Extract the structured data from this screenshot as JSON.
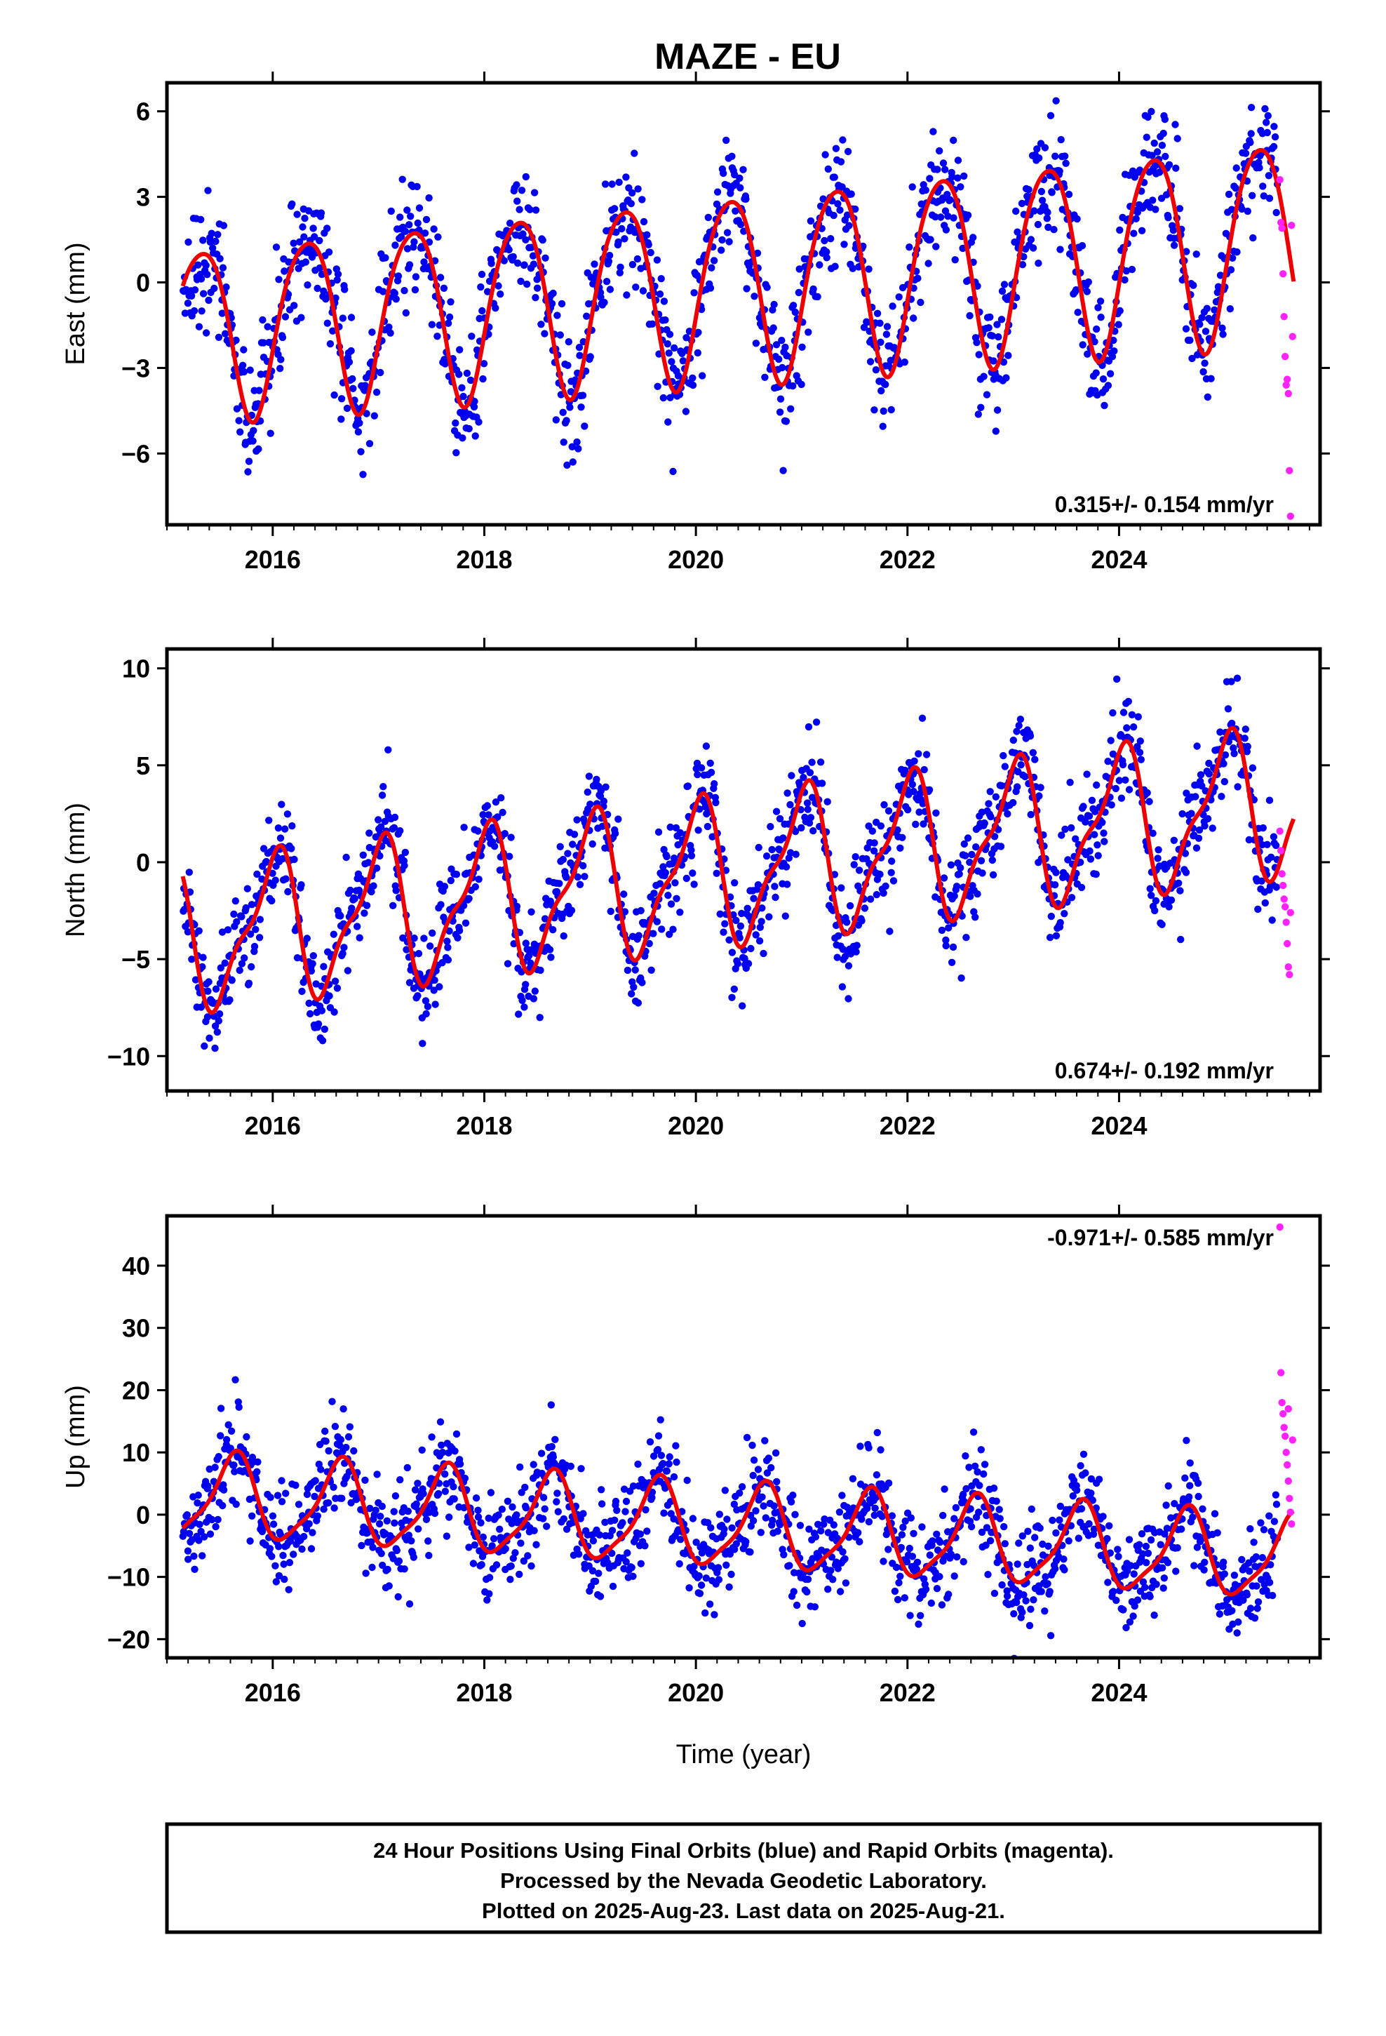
{
  "title": "MAZE - EU",
  "colors": {
    "final_points": "#0000ee",
    "rapid_points": "#ff22ff",
    "model_line": "#ee0000",
    "frame": "#000000"
  },
  "chart_data": [
    {
      "type": "scatter",
      "panel": "east",
      "ylabel": "East (mm)",
      "xlabel": "",
      "xlim": [
        2015.0,
        2025.9
      ],
      "ylim": [
        -8.5,
        7.0
      ],
      "yticks": [
        6,
        3,
        0,
        -3,
        -6
      ],
      "ytick_labels": [
        "6",
        "3",
        "0",
        "−3",
        "−6"
      ],
      "xticks": [
        2016,
        2018,
        2020,
        2022,
        2024
      ],
      "xtick_labels": [
        "2016",
        "2018",
        "2020",
        "2022",
        "2024"
      ],
      "rate_label": "0.315+/- 0.154 mm/yr",
      "rate_position": "bottom-right",
      "model": {
        "start": 2015.15,
        "end": 2025.65,
        "trend": 0.315,
        "offset": -1.7,
        "amplitude": 3.0,
        "amp_growth": 0.05,
        "phase_peak": 0.32,
        "semi_amplitude": 0.4,
        "semi_peak": 0.55
      },
      "noise_sd": 1.1,
      "series": [
        {
          "name": "Final Orbits",
          "x_start": 2015.15,
          "x_end": 2025.5,
          "points_per_year": 140
        },
        {
          "name": "Rapid Orbits",
          "x": [
            2025.52,
            2025.53,
            2025.54,
            2025.55,
            2025.56,
            2025.57,
            2025.58,
            2025.59,
            2025.6,
            2025.61,
            2025.62,
            2025.63,
            2025.64
          ],
          "y": [
            3.6,
            2.1,
            1.9,
            0.3,
            -1.2,
            -2.6,
            -3.6,
            -3.4,
            -3.9,
            -6.6,
            -8.2,
            2.0,
            -1.9
          ]
        }
      ]
    },
    {
      "type": "scatter",
      "panel": "north",
      "ylabel": "North (mm)",
      "xlabel": "",
      "xlim": [
        2015.0,
        2025.9
      ],
      "ylim": [
        -11.8,
        11.0
      ],
      "yticks": [
        10,
        5,
        0,
        -5,
        -10
      ],
      "ytick_labels": [
        "10",
        "5",
        "0",
        "−5",
        "−10"
      ],
      "xticks": [
        2016,
        2018,
        2020,
        2022,
        2024
      ],
      "xtick_labels": [
        "2016",
        "2018",
        "2020",
        "2022",
        "2024"
      ],
      "rate_label": "0.674+/- 0.192 mm/yr",
      "rate_position": "bottom-right",
      "model": {
        "start": 2015.15,
        "end": 2025.65,
        "trend": 0.674,
        "offset": -3.9,
        "amplitude": 3.5,
        "amp_growth": 0.0,
        "phase_peak": 0.0,
        "semi_amplitude": 1.2,
        "semi_peak": 0.12
      },
      "noise_sd": 1.4,
      "series": [
        {
          "name": "Final Orbits",
          "x_start": 2015.15,
          "x_end": 2025.5,
          "points_per_year": 140
        },
        {
          "name": "Rapid Orbits",
          "x": [
            2025.52,
            2025.53,
            2025.54,
            2025.55,
            2025.56,
            2025.57,
            2025.58,
            2025.59,
            2025.6,
            2025.61,
            2025.62
          ],
          "y": [
            1.6,
            0.6,
            -0.6,
            -1.2,
            -1.9,
            -2.3,
            -3.1,
            -4.2,
            -5.4,
            -5.8,
            -2.6
          ]
        }
      ]
    },
    {
      "type": "scatter",
      "panel": "up",
      "ylabel": "Up (mm)",
      "xlabel": "Time (year)",
      "xlim": [
        2015.0,
        2025.9
      ],
      "ylim": [
        -23.0,
        48.0
      ],
      "yticks": [
        40,
        30,
        20,
        10,
        0,
        -10,
        -20
      ],
      "ytick_labels": [
        "40",
        "30",
        "20",
        "10",
        "0",
        "−10",
        "−20"
      ],
      "xticks": [
        2016,
        2018,
        2020,
        2022,
        2024
      ],
      "xtick_labels": [
        "2016",
        "2018",
        "2020",
        "2022",
        "2024"
      ],
      "rate_label": "-0.971+/- 0.585 mm/yr",
      "rate_position": "top-right",
      "model": {
        "start": 2015.15,
        "end": 2025.65,
        "trend": -0.971,
        "offset": 3.0,
        "amplitude": 6.5,
        "amp_growth": 0.0,
        "phase_peak": 0.63,
        "semi_amplitude": 1.6,
        "semi_peak": 0.7
      },
      "noise_sd": 4.0,
      "series": [
        {
          "name": "Final Orbits",
          "x_start": 2015.15,
          "x_end": 2025.5,
          "points_per_year": 140
        },
        {
          "name": "Rapid Orbits",
          "x": [
            2025.52,
            2025.53,
            2025.54,
            2025.55,
            2025.56,
            2025.57,
            2025.58,
            2025.59,
            2025.6,
            2025.61,
            2025.62,
            2025.63,
            2025.64,
            2025.6
          ],
          "y": [
            46.2,
            22.8,
            18.0,
            16.2,
            14.0,
            12.6,
            10.0,
            8.0,
            5.4,
            2.6,
            0.4,
            -1.5,
            12.0,
            17.0
          ]
        }
      ]
    }
  ],
  "footer": {
    "line1": "24 Hour Positions Using Final Orbits (blue) and Rapid Orbits (magenta).",
    "line2": "Processed by the Nevada Geodetic Laboratory.",
    "line3": "Plotted on 2025-Aug-23. Last data on 2025-Aug-21."
  }
}
